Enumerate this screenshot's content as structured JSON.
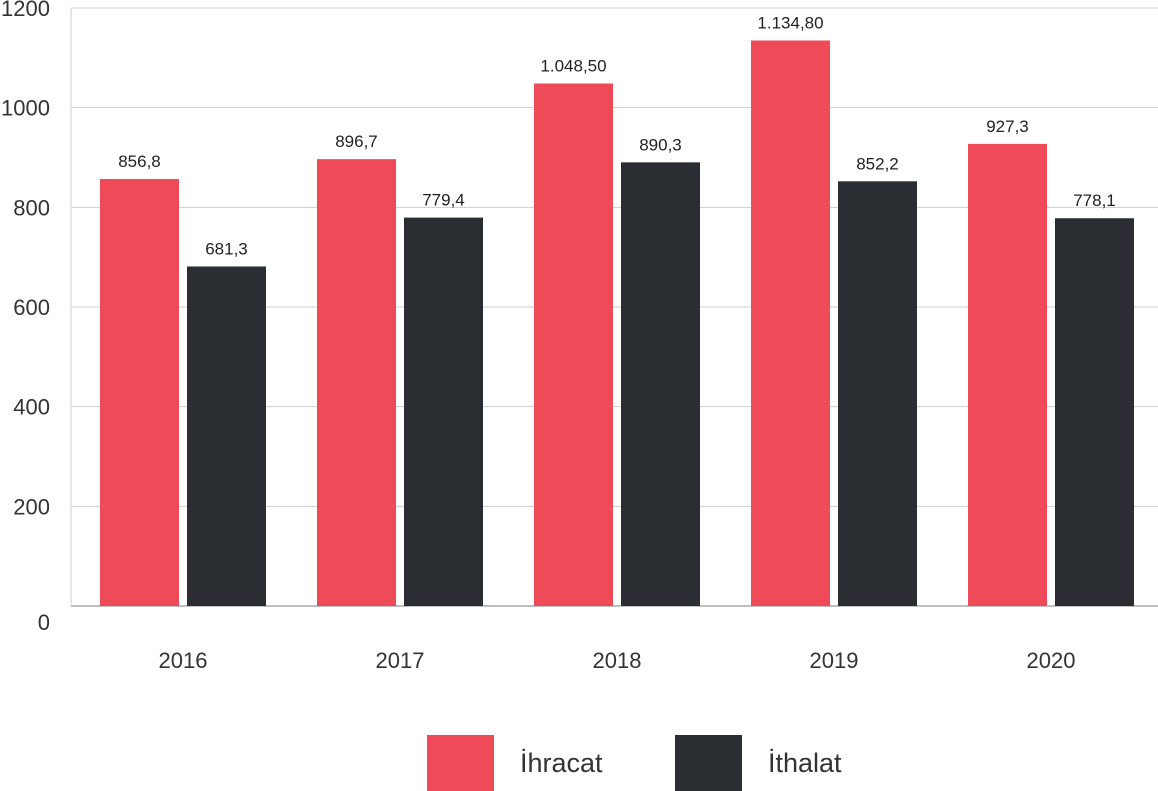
{
  "chart_data": {
    "type": "bar",
    "categories": [
      "2016",
      "2017",
      "2018",
      "2019",
      "2020"
    ],
    "series": [
      {
        "name": "İhracat",
        "color": "#EF4A57",
        "values": [
          856.8,
          896.7,
          1048.5,
          1134.8,
          927.3
        ],
        "labels": [
          "856,8",
          "896,7",
          "1.048,50",
          "1.134,80",
          "927,3"
        ]
      },
      {
        "name": "İthalat",
        "color": "#2A2D31",
        "values": [
          681.3,
          779.4,
          890.3,
          852.2,
          778.1
        ],
        "labels": [
          "681,3",
          "779,4",
          "890,3",
          "852,2",
          "778,1"
        ]
      }
    ],
    "y_ticks": [
      "0",
      "200",
      "400",
      "600",
      "800",
      "1000",
      "1200"
    ],
    "ylim": [
      0,
      1200
    ],
    "grid": true,
    "legend_position": "bottom-center",
    "title": "",
    "xlabel": "",
    "ylabel": ""
  }
}
